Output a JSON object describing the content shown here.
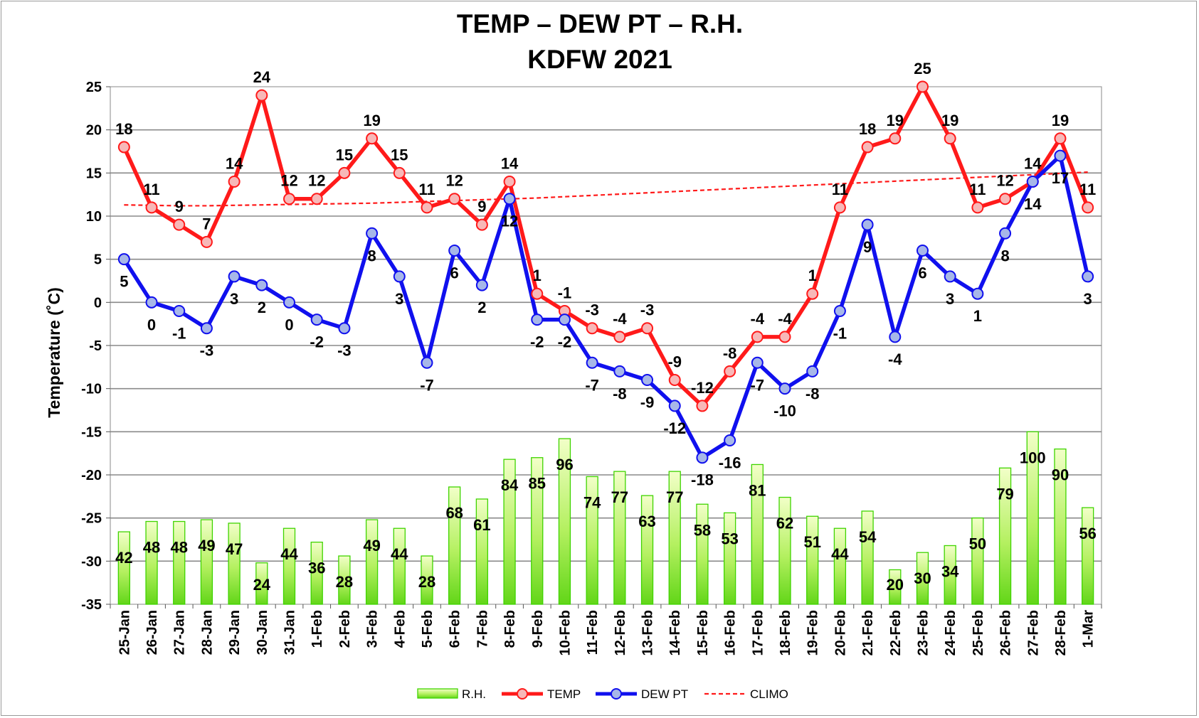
{
  "chart_data": {
    "type": "combo",
    "title_line1": "TEMP – DEW PT – R.H.",
    "title_line2": "KDFW 2021",
    "ylabel": "Temperature (˚C)",
    "ylim": [
      -35,
      25
    ],
    "yticks": [
      25,
      20,
      15,
      10,
      5,
      0,
      -5,
      -10,
      -15,
      -20,
      -25,
      -30,
      -35
    ],
    "grid": true,
    "legend_position": "bottom",
    "categories": [
      "25-Jan",
      "26-Jan",
      "27-Jan",
      "28-Jan",
      "29-Jan",
      "30-Jan",
      "31-Jan",
      "1-Feb",
      "2-Feb",
      "3-Feb",
      "4-Feb",
      "5-Feb",
      "6-Feb",
      "7-Feb",
      "8-Feb",
      "9-Feb",
      "10-Feb",
      "11-Feb",
      "12-Feb",
      "13-Feb",
      "14-Feb",
      "15-Feb",
      "16-Feb",
      "17-Feb",
      "18-Feb",
      "19-Feb",
      "20-Feb",
      "21-Feb",
      "22-Feb",
      "23-Feb",
      "24-Feb",
      "25-Feb",
      "26-Feb",
      "27-Feb",
      "28-Feb",
      "1-Mar"
    ],
    "series": [
      {
        "name": "R.H.",
        "type": "bar",
        "color": "#66ee22",
        "values": [
          42,
          48,
          48,
          49,
          47,
          24,
          44,
          36,
          28,
          49,
          44,
          28,
          68,
          61,
          84,
          85,
          96,
          74,
          77,
          63,
          77,
          58,
          53,
          81,
          62,
          51,
          44,
          54,
          20,
          30,
          34,
          50,
          79,
          100,
          90,
          56
        ]
      },
      {
        "name": "TEMP",
        "type": "line",
        "color": "#ff1a1a",
        "marker_fill": "#f7b8b8",
        "values": [
          18,
          11,
          9,
          7,
          14,
          24,
          12,
          12,
          15,
          19,
          15,
          11,
          12,
          9,
          14,
          1,
          -1,
          -3,
          -4,
          -3,
          -9,
          -12,
          -8,
          -4,
          -4,
          1,
          11,
          18,
          19,
          25,
          19,
          11,
          12,
          14,
          19,
          11
        ]
      },
      {
        "name": "DEW PT",
        "type": "line",
        "color": "#1010ee",
        "marker_fill": "#a7b7e8",
        "values": [
          5,
          0,
          -1,
          -3,
          3,
          2,
          0,
          -2,
          -3,
          8,
          3,
          -7,
          6,
          2,
          12,
          -2,
          -2,
          -7,
          -8,
          -9,
          -12,
          -18,
          -16,
          -7,
          -10,
          -8,
          -1,
          9,
          -4,
          6,
          3,
          1,
          8,
          14,
          17,
          3
        ]
      },
      {
        "name": "CLIMO",
        "type": "line",
        "style": "dashed",
        "color": "#ff1a1a",
        "values": [
          11.3,
          11.25,
          11.2,
          11.2,
          11.25,
          11.3,
          11.35,
          11.4,
          11.45,
          11.5,
          11.6,
          11.7,
          11.8,
          11.9,
          12.0,
          12.1,
          12.25,
          12.4,
          12.55,
          12.7,
          12.85,
          13.0,
          13.15,
          13.3,
          13.45,
          13.6,
          13.75,
          13.9,
          14.05,
          14.2,
          14.35,
          14.5,
          14.65,
          14.8,
          14.95,
          15.1
        ]
      }
    ]
  }
}
